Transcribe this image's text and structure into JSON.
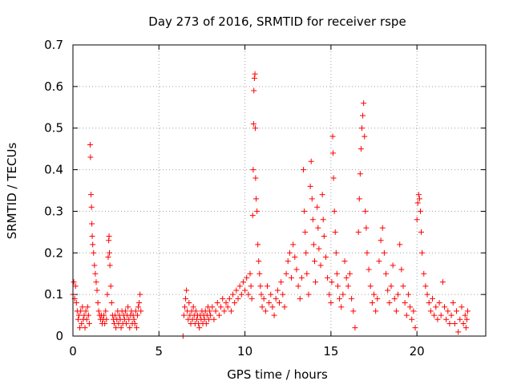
{
  "chart_data": {
    "type": "scatter",
    "title": "Day 273 of 2016, SRMTID for receiver rspe",
    "xlabel": "GPS time / hours",
    "ylabel": "SRMTID / TECUs",
    "xlim": [
      0,
      24
    ],
    "ylim": [
      0,
      0.7
    ],
    "xticks": [
      "0",
      "5",
      "10",
      "15",
      "20"
    ],
    "yticks": [
      "0",
      "0.1",
      "0.2",
      "0.3",
      "0.4",
      "0.5",
      "0.6",
      "0.7"
    ],
    "grid": true,
    "marker": "+",
    "color": "#ff0000",
    "series": [
      {
        "points": [
          [
            0.0,
            0.1
          ],
          [
            0.05,
            0.13
          ],
          [
            0.1,
            0.09
          ],
          [
            0.15,
            0.12
          ],
          [
            0.2,
            0.08
          ],
          [
            0.25,
            0.06
          ],
          [
            0.3,
            0.04
          ],
          [
            0.35,
            0.05
          ],
          [
            0.4,
            0.02
          ],
          [
            0.45,
            0.06
          ],
          [
            0.5,
            0.03
          ],
          [
            0.55,
            0.07
          ],
          [
            0.6,
            0.04
          ],
          [
            0.65,
            0.05
          ],
          [
            0.7,
            0.02
          ],
          [
            0.75,
            0.06
          ],
          [
            0.8,
            0.04
          ],
          [
            0.85,
            0.07
          ],
          [
            0.9,
            0.05
          ],
          [
            0.95,
            0.03
          ],
          [
            1.0,
            0.46
          ],
          [
            1.02,
            0.43
          ],
          [
            1.05,
            0.34
          ],
          [
            1.08,
            0.31
          ],
          [
            1.1,
            0.27
          ],
          [
            1.12,
            0.24
          ],
          [
            1.15,
            0.22
          ],
          [
            1.2,
            0.2
          ],
          [
            1.25,
            0.17
          ],
          [
            1.3,
            0.15
          ],
          [
            1.35,
            0.13
          ],
          [
            1.4,
            0.11
          ],
          [
            1.45,
            0.08
          ],
          [
            1.5,
            0.06
          ],
          [
            1.55,
            0.05
          ],
          [
            1.6,
            0.04
          ],
          [
            1.65,
            0.05
          ],
          [
            1.7,
            0.03
          ],
          [
            1.75,
            0.04
          ],
          [
            1.8,
            0.05
          ],
          [
            1.85,
            0.03
          ],
          [
            1.9,
            0.06
          ],
          [
            1.95,
            0.04
          ],
          [
            2.0,
            0.1
          ],
          [
            2.05,
            0.19
          ],
          [
            2.08,
            0.23
          ],
          [
            2.1,
            0.24
          ],
          [
            2.12,
            0.2
          ],
          [
            2.15,
            0.17
          ],
          [
            2.2,
            0.12
          ],
          [
            2.25,
            0.08
          ],
          [
            2.3,
            0.05
          ],
          [
            2.35,
            0.04
          ],
          [
            2.4,
            0.03
          ],
          [
            2.45,
            0.05
          ],
          [
            2.5,
            0.02
          ],
          [
            2.55,
            0.04
          ],
          [
            2.6,
            0.06
          ],
          [
            2.65,
            0.03
          ],
          [
            2.7,
            0.05
          ],
          [
            2.75,
            0.04
          ],
          [
            2.8,
            0.02
          ],
          [
            2.85,
            0.06
          ],
          [
            2.9,
            0.03
          ],
          [
            2.95,
            0.05
          ],
          [
            3.0,
            0.04
          ],
          [
            3.05,
            0.06
          ],
          [
            3.1,
            0.03
          ],
          [
            3.15,
            0.05
          ],
          [
            3.2,
            0.07
          ],
          [
            3.25,
            0.04
          ],
          [
            3.3,
            0.02
          ],
          [
            3.35,
            0.05
          ],
          [
            3.4,
            0.06
          ],
          [
            3.45,
            0.03
          ],
          [
            3.5,
            0.05
          ],
          [
            3.55,
            0.04
          ],
          [
            3.6,
            0.03
          ],
          [
            3.65,
            0.06
          ],
          [
            3.7,
            0.02
          ],
          [
            3.75,
            0.05
          ],
          [
            3.8,
            0.07
          ],
          [
            3.85,
            0.08
          ],
          [
            3.9,
            0.1
          ],
          [
            3.95,
            0.06
          ],
          [
            6.4,
            0.0
          ],
          [
            6.45,
            0.05
          ],
          [
            6.5,
            0.07
          ],
          [
            6.55,
            0.09
          ],
          [
            6.6,
            0.11
          ],
          [
            6.65,
            0.06
          ],
          [
            6.7,
            0.04
          ],
          [
            6.75,
            0.08
          ],
          [
            6.8,
            0.05
          ],
          [
            6.85,
            0.03
          ],
          [
            6.9,
            0.06
          ],
          [
            6.95,
            0.04
          ],
          [
            7.0,
            0.07
          ],
          [
            7.05,
            0.05
          ],
          [
            7.1,
            0.03
          ],
          [
            7.15,
            0.06
          ],
          [
            7.2,
            0.04
          ],
          [
            7.25,
            0.05
          ],
          [
            7.3,
            0.03
          ],
          [
            7.35,
            0.02
          ],
          [
            7.4,
            0.05
          ],
          [
            7.45,
            0.04
          ],
          [
            7.5,
            0.06
          ],
          [
            7.55,
            0.03
          ],
          [
            7.6,
            0.05
          ],
          [
            7.65,
            0.04
          ],
          [
            7.7,
            0.06
          ],
          [
            7.75,
            0.03
          ],
          [
            7.8,
            0.05
          ],
          [
            7.85,
            0.07
          ],
          [
            7.9,
            0.04
          ],
          [
            7.95,
            0.06
          ],
          [
            8.0,
            0.05
          ],
          [
            8.1,
            0.07
          ],
          [
            8.2,
            0.04
          ],
          [
            8.3,
            0.06
          ],
          [
            8.4,
            0.08
          ],
          [
            8.5,
            0.05
          ],
          [
            8.6,
            0.07
          ],
          [
            8.7,
            0.09
          ],
          [
            8.8,
            0.06
          ],
          [
            8.9,
            0.08
          ],
          [
            9.0,
            0.07
          ],
          [
            9.1,
            0.09
          ],
          [
            9.2,
            0.06
          ],
          [
            9.3,
            0.1
          ],
          [
            9.4,
            0.08
          ],
          [
            9.5,
            0.11
          ],
          [
            9.6,
            0.09
          ],
          [
            9.7,
            0.12
          ],
          [
            9.8,
            0.1
          ],
          [
            9.9,
            0.13
          ],
          [
            10.0,
            0.11
          ],
          [
            10.1,
            0.14
          ],
          [
            10.2,
            0.1
          ],
          [
            10.3,
            0.15
          ],
          [
            10.35,
            0.12
          ],
          [
            10.4,
            0.09
          ],
          [
            10.45,
            0.29
          ],
          [
            10.48,
            0.4
          ],
          [
            10.5,
            0.51
          ],
          [
            10.52,
            0.59
          ],
          [
            10.55,
            0.62
          ],
          [
            10.58,
            0.63
          ],
          [
            10.6,
            0.5
          ],
          [
            10.62,
            0.38
          ],
          [
            10.65,
            0.33
          ],
          [
            10.7,
            0.3
          ],
          [
            10.75,
            0.22
          ],
          [
            10.8,
            0.18
          ],
          [
            10.85,
            0.15
          ],
          [
            10.9,
            0.12
          ],
          [
            10.95,
            0.1
          ],
          [
            11.0,
            0.07
          ],
          [
            11.1,
            0.09
          ],
          [
            11.2,
            0.06
          ],
          [
            11.3,
            0.12
          ],
          [
            11.4,
            0.08
          ],
          [
            11.5,
            0.1
          ],
          [
            11.6,
            0.07
          ],
          [
            11.7,
            0.05
          ],
          [
            11.8,
            0.09
          ],
          [
            11.9,
            0.11
          ],
          [
            12.0,
            0.08
          ],
          [
            12.1,
            0.13
          ],
          [
            12.2,
            0.1
          ],
          [
            12.3,
            0.07
          ],
          [
            12.4,
            0.15
          ],
          [
            12.5,
            0.18
          ],
          [
            12.6,
            0.2
          ],
          [
            12.7,
            0.14
          ],
          [
            12.8,
            0.22
          ],
          [
            12.9,
            0.19
          ],
          [
            13.0,
            0.16
          ],
          [
            13.1,
            0.12
          ],
          [
            13.2,
            0.09
          ],
          [
            13.3,
            0.14
          ],
          [
            13.4,
            0.4
          ],
          [
            13.45,
            0.3
          ],
          [
            13.5,
            0.25
          ],
          [
            13.55,
            0.2
          ],
          [
            13.6,
            0.15
          ],
          [
            13.7,
            0.1
          ],
          [
            13.8,
            0.36
          ],
          [
            13.85,
            0.42
          ],
          [
            13.9,
            0.33
          ],
          [
            13.95,
            0.28
          ],
          [
            14.0,
            0.22
          ],
          [
            14.05,
            0.18
          ],
          [
            14.1,
            0.13
          ],
          [
            14.2,
            0.31
          ],
          [
            14.25,
            0.26
          ],
          [
            14.3,
            0.21
          ],
          [
            14.4,
            0.17
          ],
          [
            14.5,
            0.34
          ],
          [
            14.55,
            0.28
          ],
          [
            14.6,
            0.24
          ],
          [
            14.7,
            0.19
          ],
          [
            14.8,
            0.14
          ],
          [
            14.9,
            0.1
          ],
          [
            15.0,
            0.08
          ],
          [
            15.05,
            0.13
          ],
          [
            15.1,
            0.48
          ],
          [
            15.12,
            0.44
          ],
          [
            15.15,
            0.38
          ],
          [
            15.2,
            0.3
          ],
          [
            15.25,
            0.25
          ],
          [
            15.3,
            0.2
          ],
          [
            15.35,
            0.15
          ],
          [
            15.4,
            0.12
          ],
          [
            15.5,
            0.09
          ],
          [
            15.6,
            0.07
          ],
          [
            15.7,
            0.1
          ],
          [
            15.8,
            0.18
          ],
          [
            15.9,
            0.14
          ],
          [
            16.0,
            0.12
          ],
          [
            16.1,
            0.15
          ],
          [
            16.2,
            0.09
          ],
          [
            16.3,
            0.06
          ],
          [
            16.4,
            0.02
          ],
          [
            16.6,
            0.25
          ],
          [
            16.65,
            0.33
          ],
          [
            16.7,
            0.39
          ],
          [
            16.75,
            0.45
          ],
          [
            16.8,
            0.5
          ],
          [
            16.85,
            0.53
          ],
          [
            16.9,
            0.56
          ],
          [
            16.95,
            0.48
          ],
          [
            17.0,
            0.3
          ],
          [
            17.05,
            0.26
          ],
          [
            17.1,
            0.2
          ],
          [
            17.2,
            0.16
          ],
          [
            17.3,
            0.12
          ],
          [
            17.4,
            0.08
          ],
          [
            17.5,
            0.1
          ],
          [
            17.6,
            0.06
          ],
          [
            17.7,
            0.09
          ],
          [
            17.8,
            0.18
          ],
          [
            17.9,
            0.23
          ],
          [
            18.0,
            0.26
          ],
          [
            18.1,
            0.2
          ],
          [
            18.2,
            0.15
          ],
          [
            18.3,
            0.11
          ],
          [
            18.4,
            0.08
          ],
          [
            18.5,
            0.12
          ],
          [
            18.6,
            0.17
          ],
          [
            18.7,
            0.09
          ],
          [
            18.8,
            0.06
          ],
          [
            18.9,
            0.1
          ],
          [
            19.0,
            0.22
          ],
          [
            19.1,
            0.16
          ],
          [
            19.2,
            0.12
          ],
          [
            19.3,
            0.08
          ],
          [
            19.4,
            0.05
          ],
          [
            19.5,
            0.1
          ],
          [
            19.6,
            0.07
          ],
          [
            19.7,
            0.04
          ],
          [
            19.8,
            0.06
          ],
          [
            19.9,
            0.02
          ],
          [
            20.0,
            0.28
          ],
          [
            20.05,
            0.32
          ],
          [
            20.1,
            0.34
          ],
          [
            20.15,
            0.33
          ],
          [
            20.2,
            0.3
          ],
          [
            20.25,
            0.25
          ],
          [
            20.3,
            0.2
          ],
          [
            20.4,
            0.15
          ],
          [
            20.5,
            0.12
          ],
          [
            20.6,
            0.1
          ],
          [
            20.7,
            0.08
          ],
          [
            20.8,
            0.06
          ],
          [
            20.9,
            0.09
          ],
          [
            21.0,
            0.05
          ],
          [
            21.1,
            0.07
          ],
          [
            21.2,
            0.04
          ],
          [
            21.3,
            0.08
          ],
          [
            21.4,
            0.05
          ],
          [
            21.5,
            0.13
          ],
          [
            21.6,
            0.07
          ],
          [
            21.7,
            0.04
          ],
          [
            21.8,
            0.06
          ],
          [
            21.9,
            0.03
          ],
          [
            22.0,
            0.05
          ],
          [
            22.1,
            0.08
          ],
          [
            22.2,
            0.03
          ],
          [
            22.3,
            0.06
          ],
          [
            22.4,
            0.01
          ],
          [
            22.5,
            0.04
          ],
          [
            22.6,
            0.07
          ],
          [
            22.7,
            0.03
          ],
          [
            22.8,
            0.05
          ],
          [
            22.85,
            0.02
          ],
          [
            22.9,
            0.04
          ],
          [
            22.95,
            0.06
          ]
        ]
      }
    ]
  }
}
